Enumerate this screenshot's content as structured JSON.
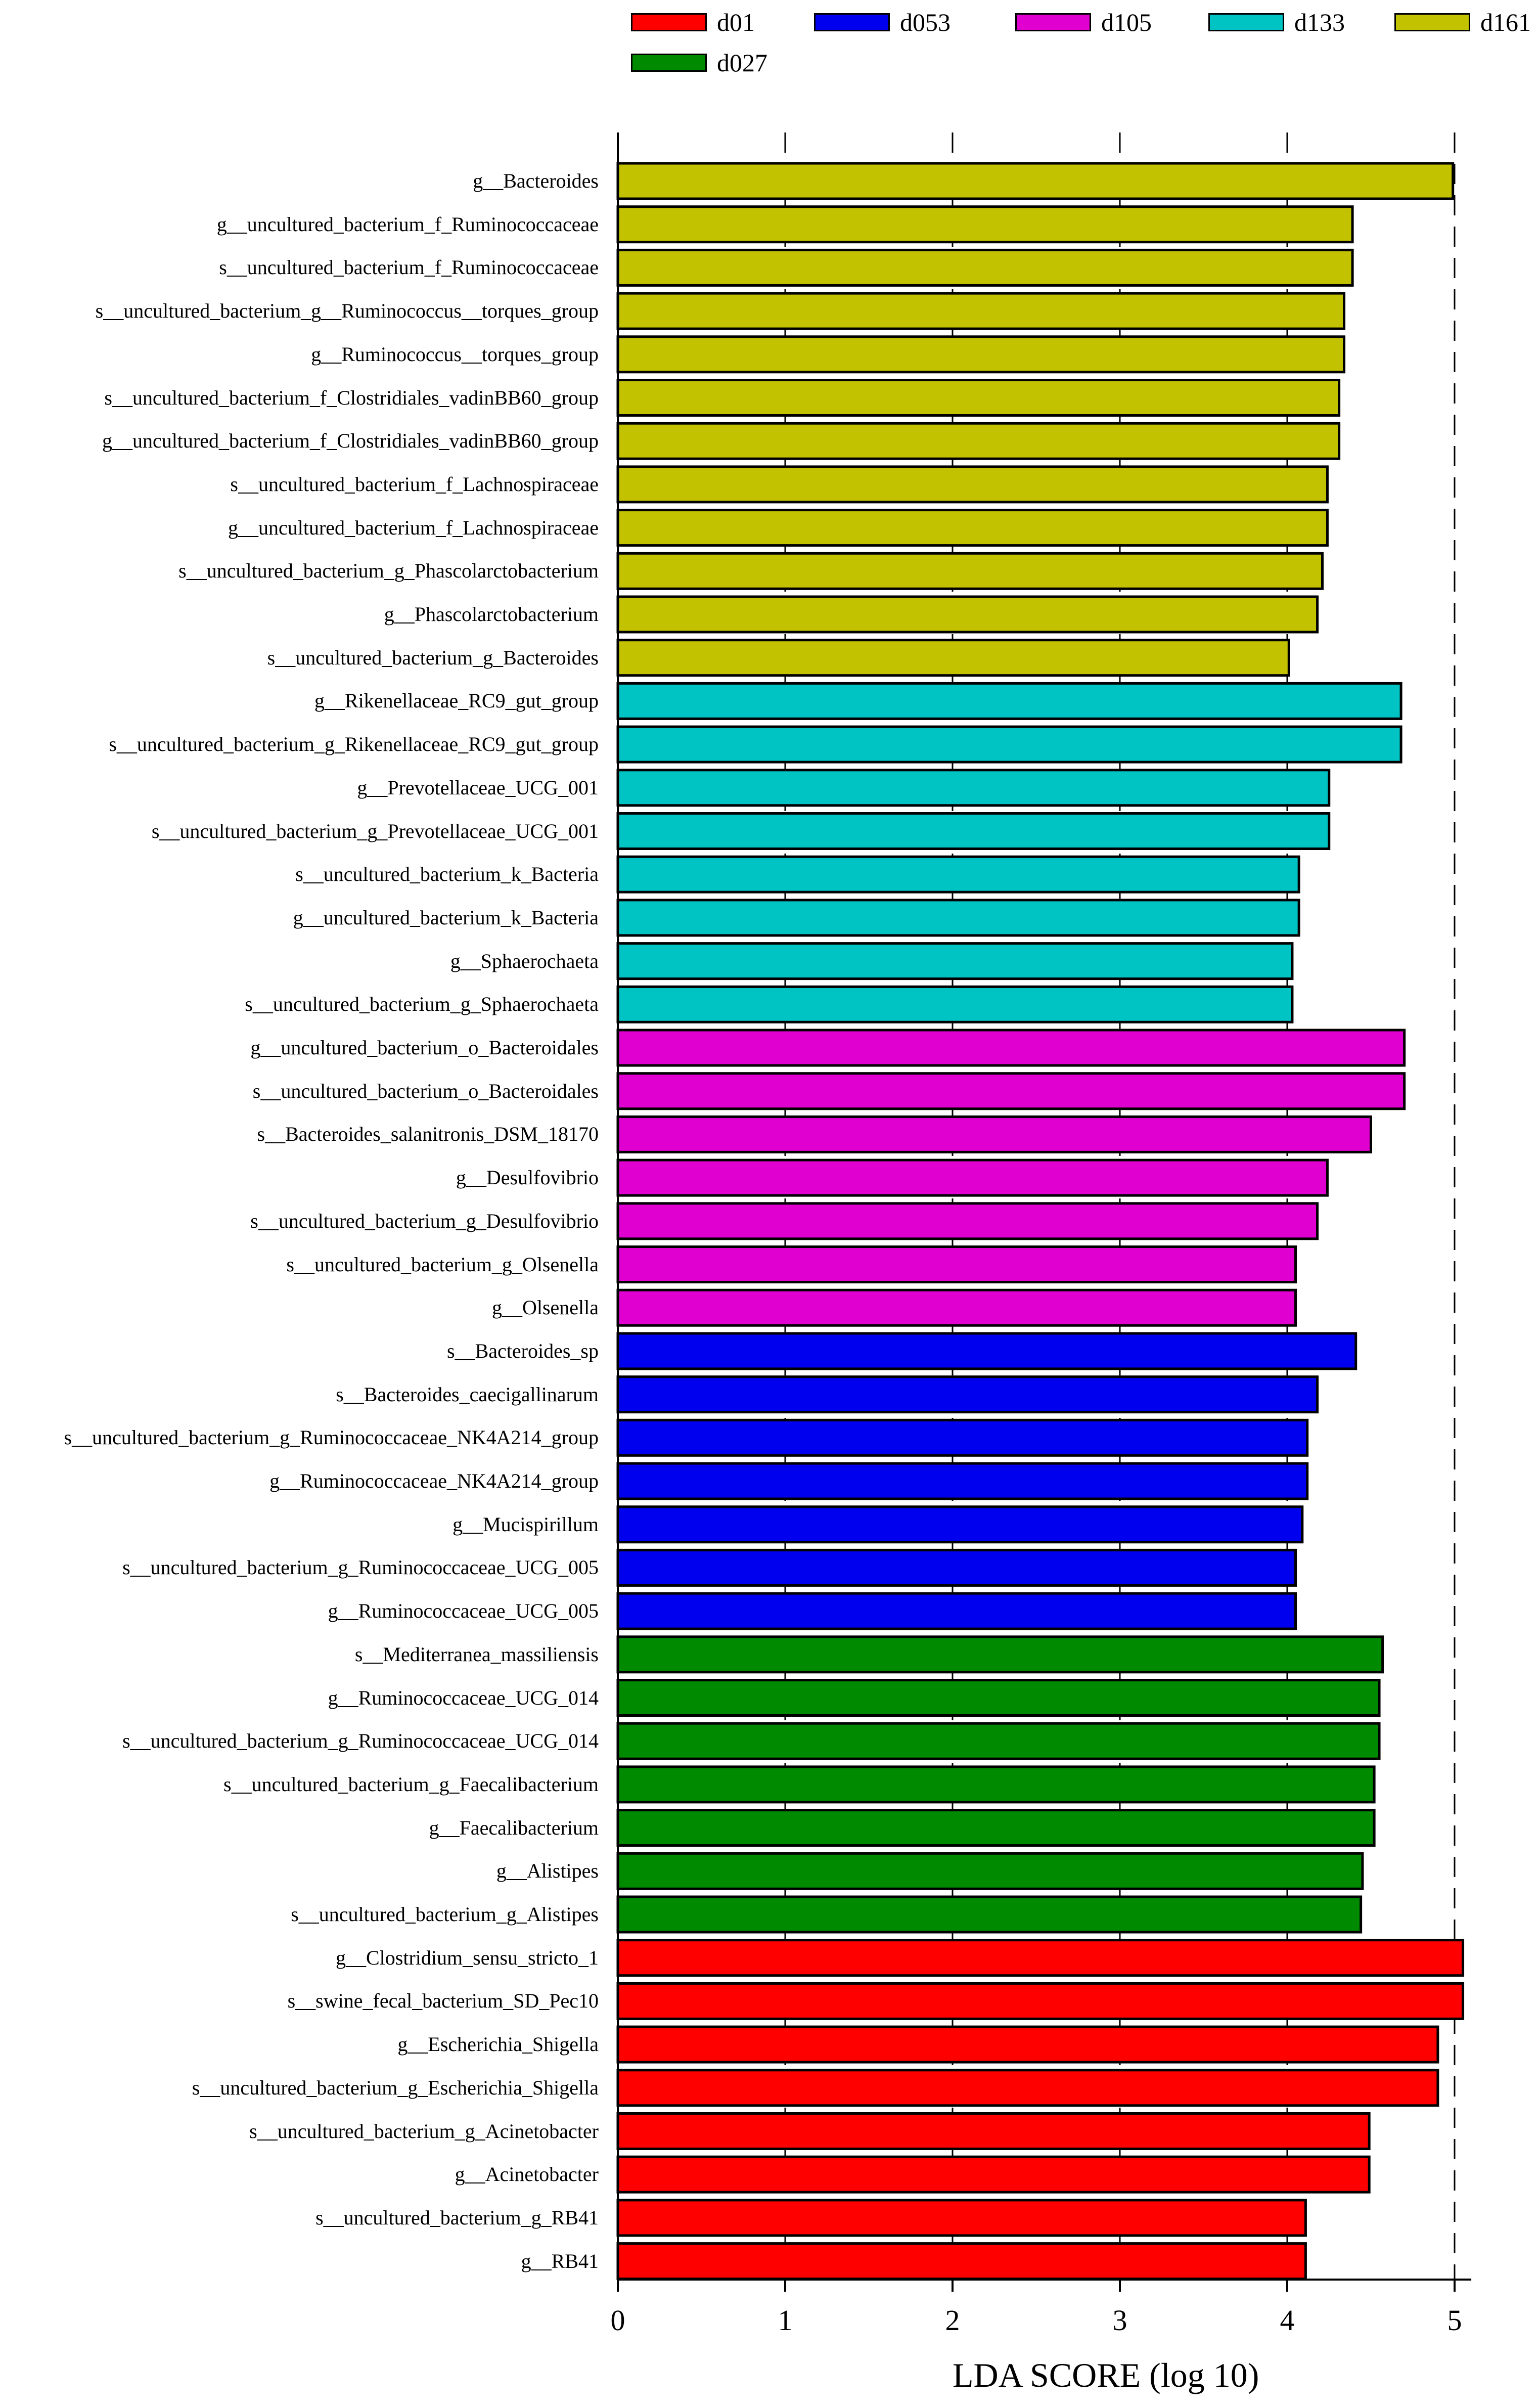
{
  "colors": {
    "d01": "#ff0000",
    "d053": "#0000ee",
    "d105": "#e000d0",
    "d133": "#00c4c4",
    "d161": "#c2c200",
    "d027": "#008a00"
  },
  "legend": [
    {
      "group": "d01",
      "label": "d01"
    },
    {
      "group": "d053",
      "label": "d053"
    },
    {
      "group": "d105",
      "label": "d105"
    },
    {
      "group": "d133",
      "label": "d133"
    },
    {
      "group": "d161",
      "label": "d161"
    },
    {
      "group": "d027",
      "label": "d027"
    }
  ],
  "chart_data": {
    "type": "bar",
    "orientation": "horizontal",
    "xlabel": "LDA SCORE (log 10)",
    "xlim": [
      0,
      5.1
    ],
    "xticks": [
      0,
      1,
      2,
      3,
      4,
      5
    ],
    "grid": "vertical dashed",
    "legend_position": "top",
    "bars": [
      {
        "category": "g__Bacteroides",
        "group": "d161",
        "value": 4.99
      },
      {
        "category": "g__uncultured_bacterium_f_Ruminococcaceae",
        "group": "d161",
        "value": 4.39
      },
      {
        "category": "s__uncultured_bacterium_f_Ruminococcaceae",
        "group": "d161",
        "value": 4.39
      },
      {
        "category": "s__uncultured_bacterium_g__Ruminococcus__torques_group",
        "group": "d161",
        "value": 4.34
      },
      {
        "category": "g__Ruminococcus__torques_group",
        "group": "d161",
        "value": 4.34
      },
      {
        "category": "s__uncultured_bacterium_f_Clostridiales_vadinBB60_group",
        "group": "d161",
        "value": 4.31
      },
      {
        "category": "g__uncultured_bacterium_f_Clostridiales_vadinBB60_group",
        "group": "d161",
        "value": 4.31
      },
      {
        "category": "s__uncultured_bacterium_f_Lachnospiraceae",
        "group": "d161",
        "value": 4.24
      },
      {
        "category": "g__uncultured_bacterium_f_Lachnospiraceae",
        "group": "d161",
        "value": 4.24
      },
      {
        "category": "s__uncultured_bacterium_g_Phascolarctobacterium",
        "group": "d161",
        "value": 4.21
      },
      {
        "category": "g__Phascolarctobacterium",
        "group": "d161",
        "value": 4.18
      },
      {
        "category": "s__uncultured_bacterium_g_Bacteroides",
        "group": "d161",
        "value": 4.01
      },
      {
        "category": "g__Rikenellaceae_RC9_gut_group",
        "group": "d133",
        "value": 4.68
      },
      {
        "category": "s__uncultured_bacterium_g_Rikenellaceae_RC9_gut_group",
        "group": "d133",
        "value": 4.68
      },
      {
        "category": "g__Prevotellaceae_UCG_001",
        "group": "d133",
        "value": 4.25
      },
      {
        "category": "s__uncultured_bacterium_g_Prevotellaceae_UCG_001",
        "group": "d133",
        "value": 4.25
      },
      {
        "category": "s__uncultured_bacterium_k_Bacteria",
        "group": "d133",
        "value": 4.07
      },
      {
        "category": "g__uncultured_bacterium_k_Bacteria",
        "group": "d133",
        "value": 4.07
      },
      {
        "category": "g__Sphaerochaeta",
        "group": "d133",
        "value": 4.03
      },
      {
        "category": "s__uncultured_bacterium_g_Sphaerochaeta",
        "group": "d133",
        "value": 4.03
      },
      {
        "category": "g__uncultured_bacterium_o_Bacteroidales",
        "group": "d105",
        "value": 4.7
      },
      {
        "category": "s__uncultured_bacterium_o_Bacteroidales",
        "group": "d105",
        "value": 4.7
      },
      {
        "category": "s__Bacteroides_salanitronis_DSM_18170",
        "group": "d105",
        "value": 4.5
      },
      {
        "category": "g__Desulfovibrio",
        "group": "d105",
        "value": 4.24
      },
      {
        "category": "s__uncultured_bacterium_g_Desulfovibrio",
        "group": "d105",
        "value": 4.18
      },
      {
        "category": "s__uncultured_bacterium_g_Olsenella",
        "group": "d105",
        "value": 4.05
      },
      {
        "category": "g__Olsenella",
        "group": "d105",
        "value": 4.05
      },
      {
        "category": "s__Bacteroides_sp",
        "group": "d053",
        "value": 4.41
      },
      {
        "category": "s__Bacteroides_caecigallinarum",
        "group": "d053",
        "value": 4.18
      },
      {
        "category": "s__uncultured_bacterium_g_Ruminococcaceae_NK4A214_group",
        "group": "d053",
        "value": 4.12
      },
      {
        "category": "g__Ruminococcaceae_NK4A214_group",
        "group": "d053",
        "value": 4.12
      },
      {
        "category": "g__Mucispirillum",
        "group": "d053",
        "value": 4.09
      },
      {
        "category": "s__uncultured_bacterium_g_Ruminococcaceae_UCG_005",
        "group": "d053",
        "value": 4.05
      },
      {
        "category": "g__Ruminococcaceae_UCG_005",
        "group": "d053",
        "value": 4.05
      },
      {
        "category": "s__Mediterranea_massiliensis",
        "group": "d027",
        "value": 4.57
      },
      {
        "category": "g__Ruminococcaceae_UCG_014",
        "group": "d027",
        "value": 4.55
      },
      {
        "category": "s__uncultured_bacterium_g_Ruminococcaceae_UCG_014",
        "group": "d027",
        "value": 4.55
      },
      {
        "category": "s__uncultured_bacterium_g_Faecalibacterium",
        "group": "d027",
        "value": 4.52
      },
      {
        "category": "g__Faecalibacterium",
        "group": "d027",
        "value": 4.52
      },
      {
        "category": "g__Alistipes",
        "group": "d027",
        "value": 4.45
      },
      {
        "category": "s__uncultured_bacterium_g_Alistipes",
        "group": "d027",
        "value": 4.44
      },
      {
        "category": "g__Clostridium_sensu_stricto_1",
        "group": "d01",
        "value": 5.05
      },
      {
        "category": "s__swine_fecal_bacterium_SD_Pec10",
        "group": "d01",
        "value": 5.05
      },
      {
        "category": "g__Escherichia_Shigella",
        "group": "d01",
        "value": 4.9
      },
      {
        "category": "s__uncultured_bacterium_g_Escherichia_Shigella",
        "group": "d01",
        "value": 4.9
      },
      {
        "category": "s__uncultured_bacterium_g_Acinetobacter",
        "group": "d01",
        "value": 4.49
      },
      {
        "category": "g__Acinetobacter",
        "group": "d01",
        "value": 4.49
      },
      {
        "category": "s__uncultured_bacterium_g_RB41",
        "group": "d01",
        "value": 4.11
      },
      {
        "category": "g__RB41",
        "group": "d01",
        "value": 4.11
      }
    ]
  }
}
